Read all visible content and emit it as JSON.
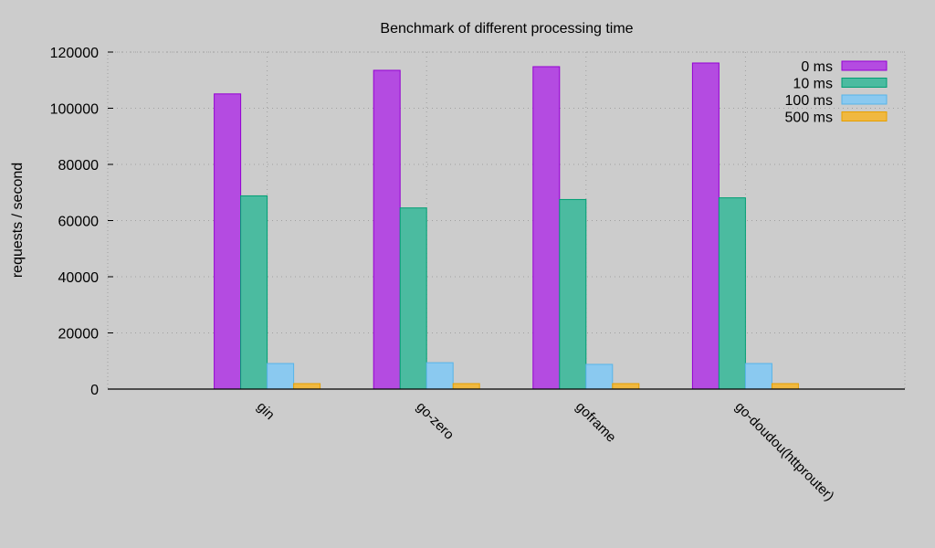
{
  "chart_data": {
    "type": "bar",
    "title": "Benchmark of different processing time",
    "xlabel": "",
    "ylabel": "requests / second",
    "ylim": [
      0,
      120000
    ],
    "yticks": [
      0,
      20000,
      40000,
      60000,
      80000,
      100000,
      120000
    ],
    "grid": true,
    "legend_position": "top-right",
    "categories": [
      "gin",
      "go-zero",
      "goframe",
      "go-doudou(httprouter)"
    ],
    "series": [
      {
        "name": "0 ms",
        "color": "#b44be1",
        "stroke": "#9400d3",
        "values": [
          105100,
          113500,
          114800,
          116100
        ]
      },
      {
        "name": "10 ms",
        "color": "#4bbba0",
        "stroke": "#009e73",
        "values": [
          68800,
          64500,
          67500,
          68100
        ]
      },
      {
        "name": "100 ms",
        "color": "#8ac9f0",
        "stroke": "#56b4e9",
        "values": [
          9100,
          9400,
          8800,
          9100
        ]
      },
      {
        "name": "500 ms",
        "color": "#f0b840",
        "stroke": "#e69f00",
        "values": [
          1950,
          1950,
          1950,
          1950
        ]
      }
    ]
  }
}
